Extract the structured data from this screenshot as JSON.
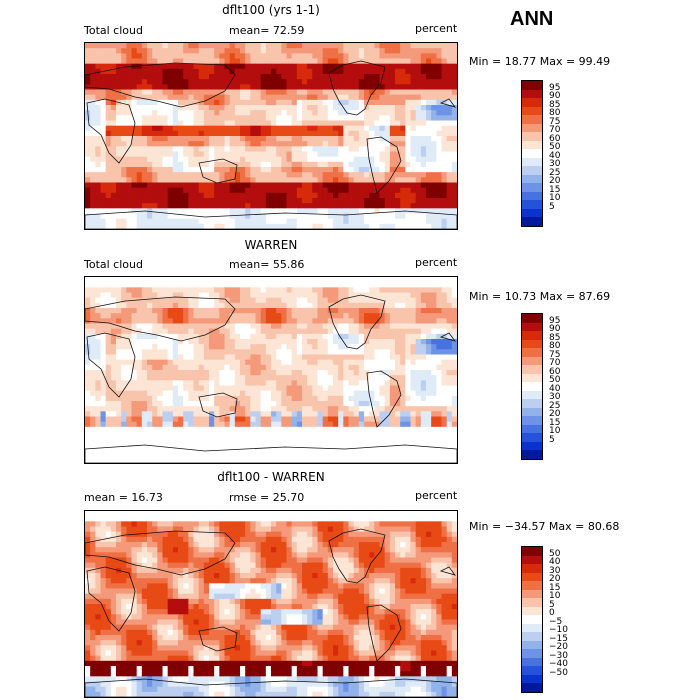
{
  "season": "ANN",
  "colorscales": {
    "abs": [
      "#7f0000",
      "#b30d0d",
      "#d62a0a",
      "#e84a16",
      "#f07046",
      "#f49a7a",
      "#f8c4ac",
      "#fde5d6",
      "#ffffff",
      "#e0ebf8",
      "#bccff0",
      "#92b2ea",
      "#6d92e6",
      "#4772e0",
      "#2552da",
      "#0a32cc",
      "#00189c"
    ],
    "diff": [
      "#7f0000",
      "#b30d0d",
      "#d62a0a",
      "#e84a16",
      "#f07046",
      "#f49a7a",
      "#f8c4ac",
      "#fde5d6",
      "#ffffff",
      "#e0ebf8",
      "#bccff0",
      "#92b2ea",
      "#6d92e6",
      "#4772e0",
      "#2552da",
      "#0a32cc",
      "#00189c"
    ]
  },
  "chart_data": [
    {
      "type": "heatmap",
      "title": "dflt100 (yrs 1-1)",
      "left_label": "Total cloud",
      "center_label": "mean=  72.59",
      "units": "percent",
      "minmax": "Min =  18.77 Max =  99.49",
      "mean": 72.59,
      "min": 18.77,
      "max": 99.49,
      "levels": [
        "95",
        "90",
        "85",
        "80",
        "75",
        "70",
        "60",
        "50",
        "40",
        "30",
        "25",
        "20",
        "15",
        "10",
        "5"
      ],
      "scale": "abs"
    },
    {
      "type": "heatmap",
      "title": "WARREN",
      "left_label": "Total cloud",
      "center_label": "mean=  55.86",
      "units": "percent",
      "minmax": "Min =  10.73 Max =  87.69",
      "mean": 55.86,
      "min": 10.73,
      "max": 87.69,
      "levels": [
        "95",
        "90",
        "85",
        "80",
        "75",
        "70",
        "60",
        "50",
        "40",
        "30",
        "25",
        "20",
        "15",
        "10",
        "5"
      ],
      "scale": "abs"
    },
    {
      "type": "heatmap",
      "title": "dflt100 - WARREN",
      "left_label": "mean =  16.73",
      "center_label": "rmse =  25.70",
      "units": "percent",
      "minmax": "Min = −34.57 Max =  80.68",
      "mean": 16.73,
      "rmse": 25.7,
      "min": -34.57,
      "max": 80.68,
      "levels": [
        "50",
        "40",
        "30",
        "20",
        "15",
        "10",
        "5",
        "0",
        "−5",
        "−10",
        "−15",
        "−20",
        "−30",
        "−40",
        "−50"
      ],
      "scale": "diff"
    }
  ]
}
